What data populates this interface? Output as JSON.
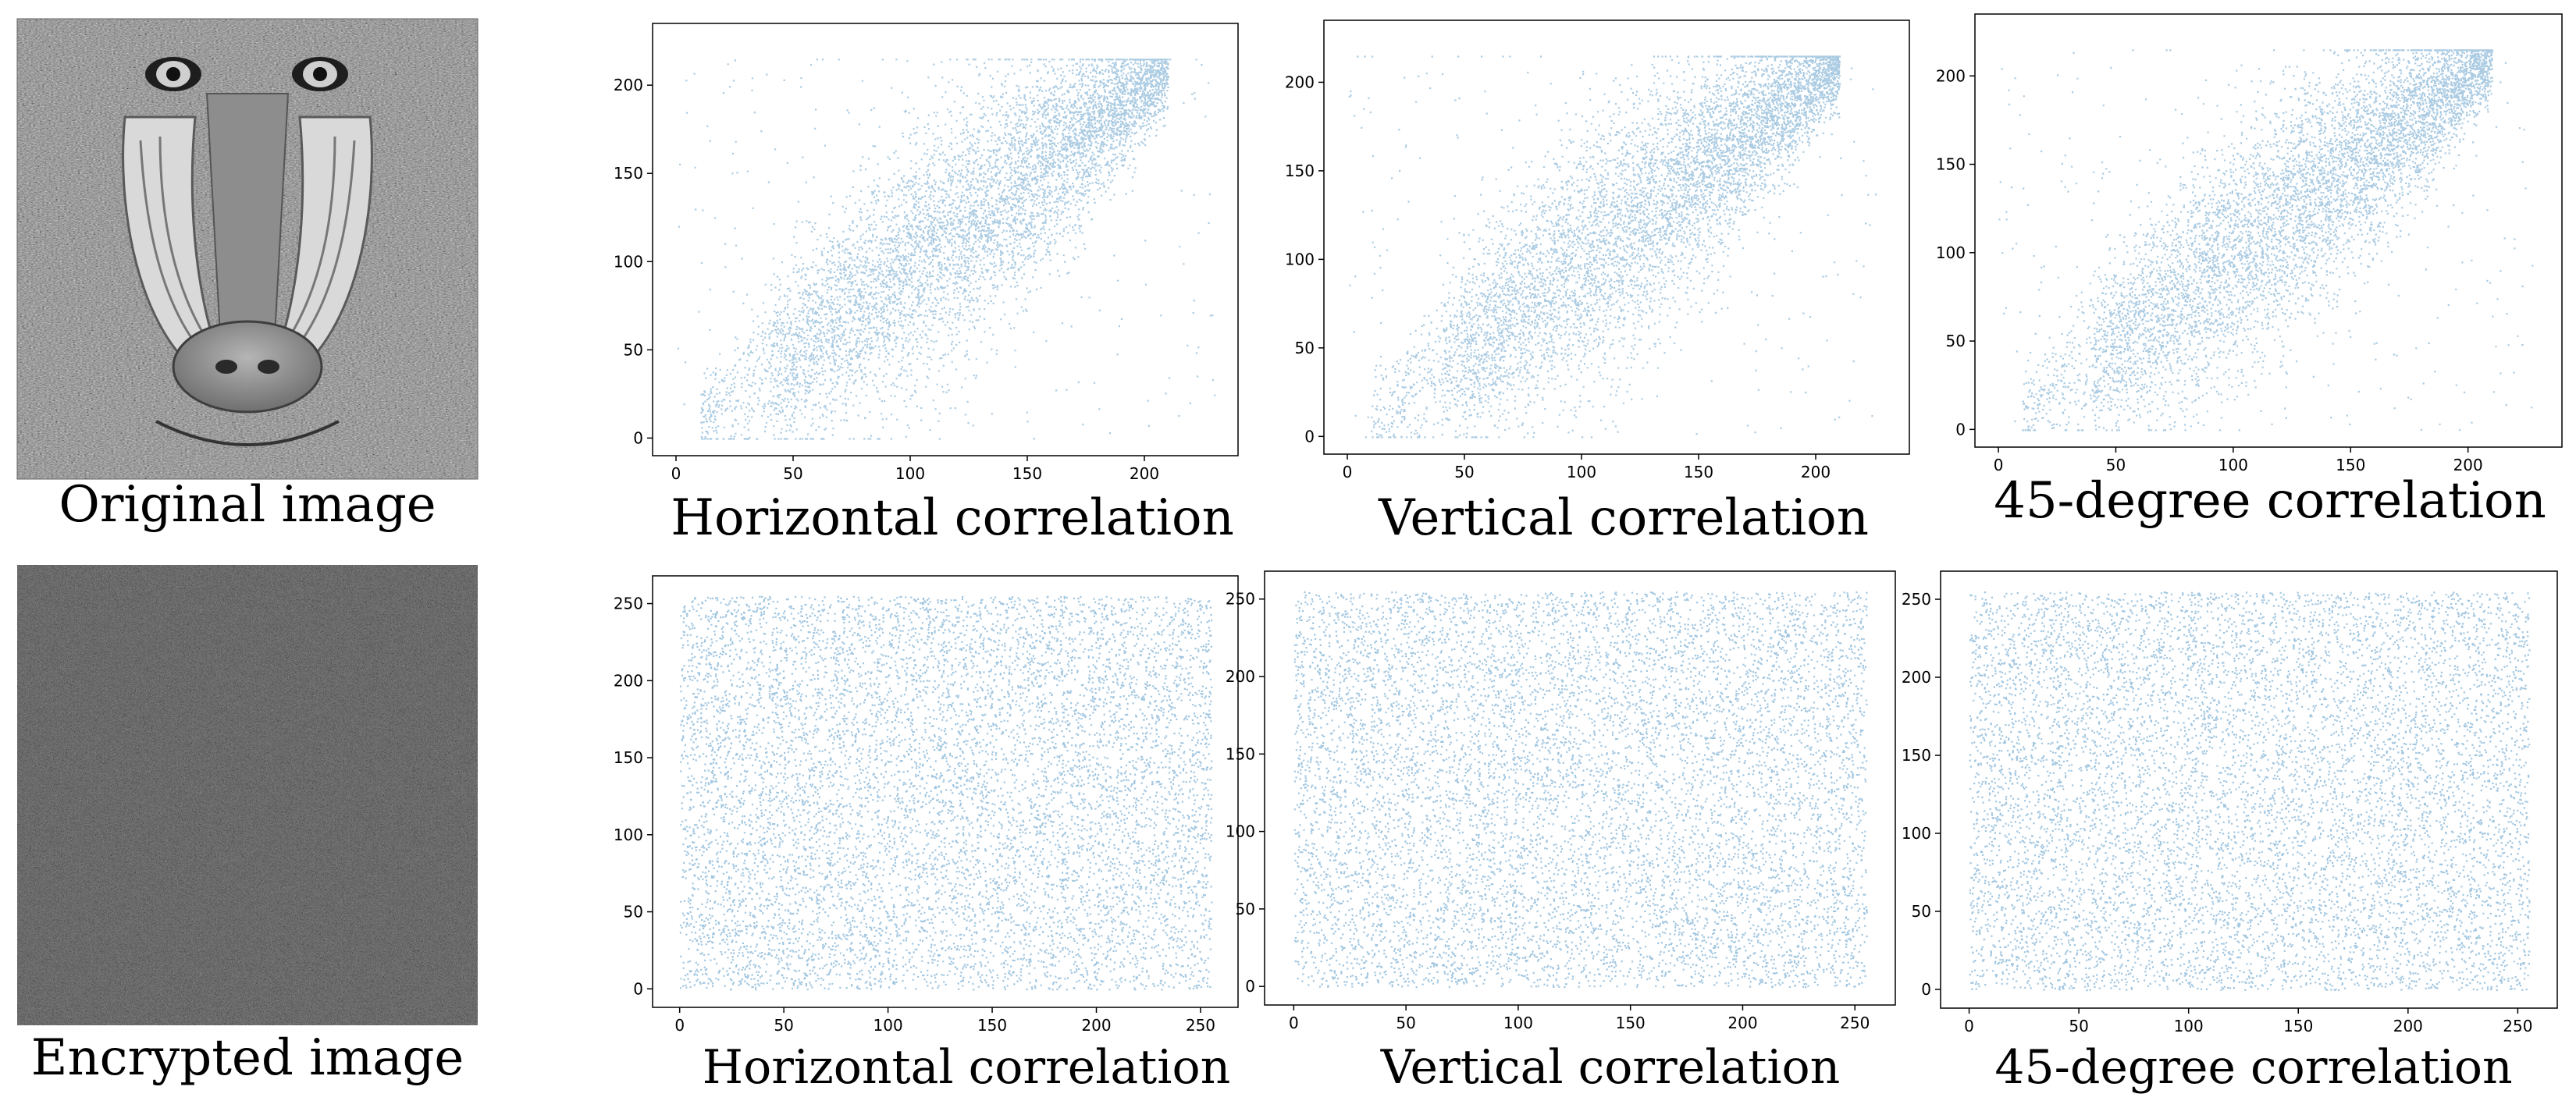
{
  "figure": {
    "caption_original": "Original image",
    "caption_encrypted": "Encrypted image",
    "marker_color": "#1f77b4",
    "original_image_label": "Mandrill (baboon) grayscale test image",
    "encrypted_image_label": "noise-like encrypted image"
  },
  "chart_data": [
    {
      "type": "scatter",
      "row": "original",
      "title": "Horizontal correlation",
      "xlim": [
        -10,
        240
      ],
      "ylim": [
        -10,
        235
      ],
      "xticks": [
        0,
        50,
        100,
        150,
        200
      ],
      "yticks": [
        0,
        50,
        100,
        150,
        200
      ],
      "distribution": "correlated",
      "approx_relation": "y ≈ x, dense band between 40 and 210"
    },
    {
      "type": "scatter",
      "row": "original",
      "title": "Vertical correlation",
      "xlim": [
        -10,
        240
      ],
      "ylim": [
        -10,
        235
      ],
      "xticks": [
        0,
        50,
        100,
        150,
        200
      ],
      "yticks": [
        0,
        50,
        100,
        150,
        200
      ],
      "distribution": "correlated",
      "approx_relation": "y ≈ x, dense band between 40 and 210"
    },
    {
      "type": "scatter",
      "row": "original",
      "title": "45-degree correlation",
      "xlim": [
        -10,
        240
      ],
      "ylim": [
        -10,
        235
      ],
      "xticks": [
        0,
        50,
        100,
        150,
        200
      ],
      "yticks": [
        0,
        50,
        100,
        150,
        200
      ],
      "distribution": "correlated",
      "approx_relation": "y ≈ x, dense band between 40 and 210"
    },
    {
      "type": "scatter",
      "row": "encrypted",
      "title": "Horizontal correlation",
      "xlim": [
        -13,
        268
      ],
      "ylim": [
        -12,
        268
      ],
      "xticks": [
        0,
        50,
        100,
        150,
        200,
        250
      ],
      "yticks": [
        0,
        50,
        100,
        150,
        200,
        250
      ],
      "distribution": "uniform",
      "approx_relation": "uniform over 0-255"
    },
    {
      "type": "scatter",
      "row": "encrypted",
      "title": "Vertical correlation",
      "xlim": [
        -13,
        268
      ],
      "ylim": [
        -12,
        268
      ],
      "xticks": [
        0,
        50,
        100,
        150,
        200,
        250
      ],
      "yticks": [
        0,
        50,
        100,
        150,
        200,
        250
      ],
      "distribution": "uniform",
      "approx_relation": "uniform over 0-255"
    },
    {
      "type": "scatter",
      "row": "encrypted",
      "title": "45-degree correlation",
      "xlim": [
        -13,
        268
      ],
      "ylim": [
        -12,
        268
      ],
      "xticks": [
        0,
        50,
        100,
        150,
        200,
        250
      ],
      "yticks": [
        0,
        50,
        100,
        150,
        200,
        250
      ],
      "distribution": "uniform",
      "approx_relation": "uniform over 0-255"
    }
  ]
}
